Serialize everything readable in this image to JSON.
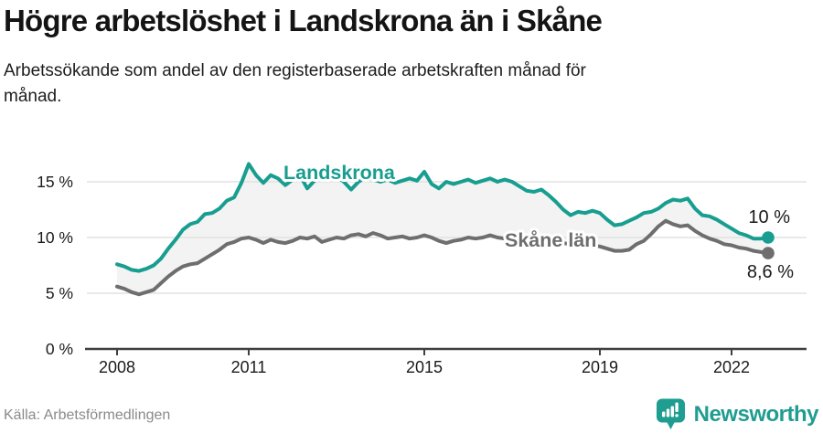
{
  "header": {
    "title": "Högre arbetslöshet i Landskrona än i Skåne",
    "subtitle_line1": "Arbetssökande som andel av den registerbaserade arbetskraften månad för",
    "subtitle_line2": "månad."
  },
  "footer": {
    "source": "Källa: Arbetsförmedlingen",
    "brand": "Newsworthy"
  },
  "colors": {
    "accent_teal": "#179e90",
    "series_gray": "#6e6e6e",
    "band_fill": "#f3f3f3",
    "grid": "#e2e2e2",
    "axis": "#3f3f3f",
    "tick_label": "#1b1b1b",
    "annotation": "#1a1a1a",
    "source_text": "#8a8a8a"
  },
  "chart_data": {
    "type": "line",
    "title": "Högre arbetslöshet i Landskrona än i Skåne",
    "subtitle": "Arbetssökande som andel av den registerbaserade arbetskraften månad för månad.",
    "xlabel": "",
    "ylabel": "",
    "grid": true,
    "legend_position": "inline-labels",
    "xlim": [
      2008,
      2023
    ],
    "ylim": [
      0,
      17.2
    ],
    "x_start": 2008.0,
    "x_step_years": 0.1666667,
    "x_ticks": [
      {
        "year": 2008,
        "label": "2008"
      },
      {
        "year": 2011,
        "label": "2011"
      },
      {
        "year": 2015,
        "label": "2015"
      },
      {
        "year": 2019,
        "label": "2019"
      },
      {
        "year": 2022,
        "label": "2022"
      }
    ],
    "y_ticks": [
      {
        "value": 0,
        "label": "0 %"
      },
      {
        "value": 5,
        "label": "5 %"
      },
      {
        "value": 10,
        "label": "10 %"
      },
      {
        "value": 15,
        "label": "15 %"
      }
    ],
    "series": [
      {
        "name": "Landskrona",
        "color": "#179e90",
        "end_label": "10 %",
        "end_value": 10.0,
        "values": [
          7.6,
          7.4,
          7.1,
          7.0,
          7.2,
          7.5,
          8.1,
          9.0,
          9.8,
          10.7,
          11.2,
          11.4,
          12.1,
          12.2,
          12.6,
          13.3,
          13.6,
          14.9,
          16.6,
          15.6,
          14.9,
          15.6,
          15.3,
          14.7,
          15.2,
          15.6,
          14.4,
          15.1,
          15.4,
          15.2,
          15.5,
          15.0,
          14.3,
          15.0,
          15.4,
          15.2,
          15.0,
          15.2,
          14.9,
          15.1,
          15.3,
          15.1,
          15.9,
          14.8,
          14.4,
          15.0,
          14.8,
          15.0,
          15.2,
          14.9,
          15.1,
          15.3,
          15.0,
          15.2,
          15.0,
          14.6,
          14.2,
          14.1,
          14.3,
          13.8,
          13.2,
          12.5,
          12.0,
          12.3,
          12.2,
          12.4,
          12.2,
          11.6,
          11.1,
          11.2,
          11.5,
          11.8,
          12.2,
          12.3,
          12.6,
          13.1,
          13.4,
          13.3,
          13.5,
          12.6,
          12.0,
          11.9,
          11.6,
          11.2,
          10.8,
          10.4,
          10.2,
          9.9,
          9.9,
          10.0
        ]
      },
      {
        "name": "Skåne län",
        "color": "#6e6e6e",
        "end_label": "8,6 %",
        "end_value": 8.6,
        "values": [
          5.6,
          5.4,
          5.1,
          4.9,
          5.1,
          5.3,
          5.9,
          6.5,
          7.0,
          7.4,
          7.6,
          7.7,
          8.1,
          8.5,
          8.9,
          9.4,
          9.6,
          9.9,
          10.0,
          9.8,
          9.5,
          9.8,
          9.6,
          9.5,
          9.7,
          10.0,
          9.9,
          10.1,
          9.6,
          9.8,
          10.0,
          9.9,
          10.2,
          10.3,
          10.1,
          10.4,
          10.2,
          9.9,
          10.0,
          10.1,
          9.9,
          10.0,
          10.2,
          10.0,
          9.7,
          9.5,
          9.7,
          9.8,
          10.0,
          9.9,
          10.0,
          10.2,
          10.0,
          9.9,
          9.8,
          9.7,
          9.6,
          9.7,
          9.8,
          9.7,
          9.6,
          9.5,
          9.4,
          9.5,
          9.4,
          9.3,
          9.2,
          9.0,
          8.8,
          8.8,
          8.9,
          9.4,
          9.7,
          10.3,
          11.0,
          11.5,
          11.2,
          11.0,
          11.1,
          10.6,
          10.2,
          9.9,
          9.7,
          9.4,
          9.3,
          9.1,
          9.0,
          8.8,
          8.7,
          8.6
        ]
      }
    ]
  }
}
